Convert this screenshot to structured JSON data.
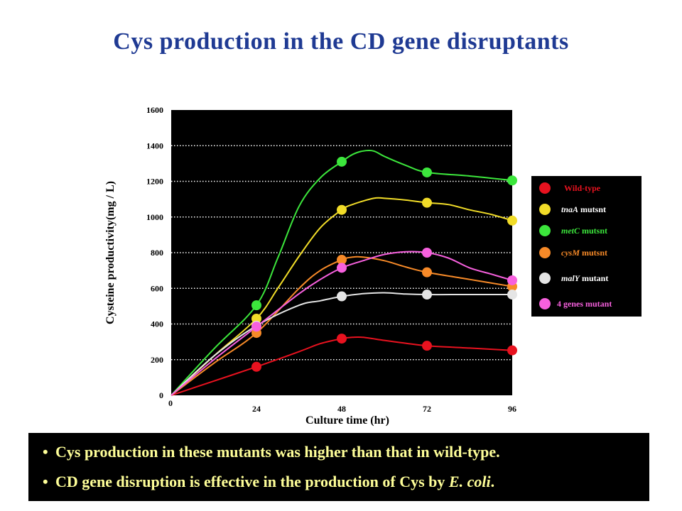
{
  "slide": {
    "title": "Cys production in the CD gene disruptants",
    "bullet_glyph": "•",
    "bullets": [
      {
        "text": "Cys production in these mutants was higher than that in wild-type."
      },
      {
        "prefix": "CD gene disruption is effective in the production of Cys by ",
        "italic": "E. coli",
        "suffix": "."
      }
    ],
    "colors": {
      "title": "#1f3a93",
      "bullet_text": "#ffff99",
      "plot_background": "#000000"
    }
  },
  "chart_data": {
    "type": "line",
    "xlabel": "Culture time (hr)",
    "ylabel": "Cysteine productivity(mg / L)",
    "xlim": [
      0,
      96
    ],
    "ylim": [
      0,
      1600
    ],
    "x_ticks": [
      0,
      24,
      48,
      72,
      96
    ],
    "y_ticks": [
      0,
      200,
      400,
      600,
      800,
      1000,
      1200,
      1400,
      1600
    ],
    "grid": "horizontal dotted",
    "legend_position": "right",
    "series": [
      {
        "name": "Wild-type",
        "legend_italic": "",
        "legend_rest": "Wild-type",
        "color": "#e8121f",
        "legend_text_color": "#e8121f",
        "markers": [
          [
            0,
            0
          ],
          [
            24,
            160
          ],
          [
            48,
            318
          ],
          [
            72,
            278
          ],
          [
            96,
            252
          ]
        ],
        "curve": [
          [
            0,
            0
          ],
          [
            12,
            80
          ],
          [
            24,
            160
          ],
          [
            36,
            245
          ],
          [
            42,
            290
          ],
          [
            48,
            318
          ],
          [
            51,
            325
          ],
          [
            54,
            325
          ],
          [
            60,
            308
          ],
          [
            66,
            292
          ],
          [
            72,
            278
          ],
          [
            84,
            265
          ],
          [
            96,
            252
          ]
        ]
      },
      {
        "name": "tnaA mutsnt",
        "legend_italic": "tnaA",
        "legend_rest": " mutsnt",
        "color": "#f1dc28",
        "legend_text_color": "#ffffff",
        "markers": [
          [
            0,
            0
          ],
          [
            24,
            430
          ],
          [
            48,
            1040
          ],
          [
            72,
            1080
          ],
          [
            96,
            980
          ]
        ],
        "curve": [
          [
            0,
            0
          ],
          [
            12,
            220
          ],
          [
            24,
            430
          ],
          [
            30,
            600
          ],
          [
            36,
            780
          ],
          [
            42,
            940
          ],
          [
            48,
            1040
          ],
          [
            51,
            1070
          ],
          [
            57,
            1105
          ],
          [
            60,
            1105
          ],
          [
            66,
            1095
          ],
          [
            72,
            1080
          ],
          [
            78,
            1070
          ],
          [
            84,
            1040
          ],
          [
            90,
            1015
          ],
          [
            96,
            980
          ]
        ]
      },
      {
        "name": "metC mutsnt",
        "legend_italic": "metC",
        "legend_rest": " mutsnt",
        "color": "#3ce63c",
        "legend_text_color": "#3ce63c",
        "markers": [
          [
            0,
            0
          ],
          [
            24,
            505
          ],
          [
            48,
            1310
          ],
          [
            72,
            1250
          ],
          [
            96,
            1205
          ]
        ],
        "curve": [
          [
            0,
            0
          ],
          [
            12,
            260
          ],
          [
            24,
            505
          ],
          [
            30,
            770
          ],
          [
            36,
            1060
          ],
          [
            42,
            1220
          ],
          [
            48,
            1310
          ],
          [
            51,
            1350
          ],
          [
            54,
            1370
          ],
          [
            57,
            1370
          ],
          [
            60,
            1340
          ],
          [
            66,
            1290
          ],
          [
            72,
            1250
          ],
          [
            84,
            1230
          ],
          [
            96,
            1205
          ]
        ]
      },
      {
        "name": "cysM mutsnt",
        "legend_italic": "cysM",
        "legend_rest": " mutsnt",
        "color": "#f78a28",
        "legend_text_color": "#f78a28",
        "markers": [
          [
            0,
            0
          ],
          [
            24,
            350
          ],
          [
            48,
            760
          ],
          [
            72,
            690
          ],
          [
            96,
            610
          ]
        ],
        "curve": [
          [
            0,
            0
          ],
          [
            12,
            180
          ],
          [
            24,
            350
          ],
          [
            36,
            600
          ],
          [
            42,
            700
          ],
          [
            48,
            760
          ],
          [
            51,
            775
          ],
          [
            54,
            775
          ],
          [
            60,
            755
          ],
          [
            66,
            720
          ],
          [
            72,
            690
          ],
          [
            84,
            650
          ],
          [
            96,
            610
          ]
        ]
      },
      {
        "name": "malY mutant",
        "legend_italic": "malY",
        "legend_rest": " mutant",
        "color": "#e5e5e5",
        "legend_text_color": "#ffffff",
        "markers": [
          [
            0,
            0
          ],
          [
            24,
            390
          ],
          [
            48,
            555
          ],
          [
            72,
            565
          ],
          [
            96,
            565
          ]
        ],
        "curve": [
          [
            0,
            0
          ],
          [
            12,
            220
          ],
          [
            24,
            390
          ],
          [
            36,
            505
          ],
          [
            42,
            530
          ],
          [
            48,
            555
          ],
          [
            54,
            570
          ],
          [
            60,
            575
          ],
          [
            66,
            568
          ],
          [
            72,
            565
          ],
          [
            84,
            565
          ],
          [
            96,
            565
          ]
        ]
      },
      {
        "name": "4 genes mutant",
        "legend_italic": "",
        "legend_rest": "4 genes mutant",
        "color": "#f760de",
        "legend_text_color": "#f760de",
        "markers": [
          [
            0,
            0
          ],
          [
            24,
            385
          ],
          [
            48,
            715
          ],
          [
            72,
            800
          ],
          [
            96,
            645
          ]
        ],
        "curve": [
          [
            0,
            0
          ],
          [
            12,
            200
          ],
          [
            24,
            385
          ],
          [
            36,
            570
          ],
          [
            42,
            650
          ],
          [
            48,
            715
          ],
          [
            54,
            755
          ],
          [
            60,
            790
          ],
          [
            66,
            805
          ],
          [
            72,
            800
          ],
          [
            78,
            770
          ],
          [
            84,
            715
          ],
          [
            90,
            680
          ],
          [
            96,
            645
          ]
        ]
      }
    ]
  }
}
